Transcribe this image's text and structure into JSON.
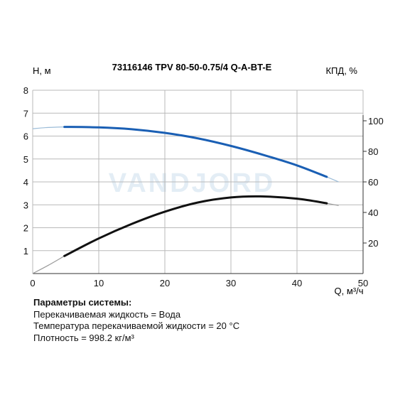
{
  "chart_data": {
    "type": "line",
    "title": "73116146 TPV 80-50-0.75/4 Q-A-BT-E",
    "ylabel_left": "H, м",
    "ylabel_right": "КПД, %",
    "xlabel": "Q, м³/ч",
    "xlim": [
      0,
      50
    ],
    "ylim_left": [
      0,
      8
    ],
    "ylim_right": [
      0,
      120
    ],
    "xticks": [
      "0",
      "10",
      "20",
      "30",
      "40",
      "50"
    ],
    "yticks_left": [
      "1",
      "2",
      "3",
      "4",
      "5",
      "6",
      "7",
      "8"
    ],
    "yticks_right": [
      "20",
      "40",
      "60",
      "80",
      "100"
    ],
    "grid": true,
    "watermark": "VANDJORD",
    "series": [
      {
        "axis": "left",
        "color": "#1a5fb4",
        "ext_color": "#9bbcd8",
        "values": [
          [
            4.8,
            6.4
          ],
          [
            10,
            6.38
          ],
          [
            15,
            6.3
          ],
          [
            20,
            6.14
          ],
          [
            25,
            5.9
          ],
          [
            30,
            5.57
          ],
          [
            35,
            5.17
          ],
          [
            40,
            4.72
          ],
          [
            44.5,
            4.22
          ]
        ],
        "ext_start": [
          [
            0,
            6.32
          ],
          [
            2,
            6.37
          ],
          [
            4.8,
            6.4
          ]
        ],
        "ext_end": [
          [
            44.5,
            4.22
          ],
          [
            46.3,
            4.0
          ]
        ]
      },
      {
        "axis": "right",
        "color": "#111111",
        "ext_color": "#9a9a9a",
        "values": [
          [
            4.8,
            11.5
          ],
          [
            10,
            23
          ],
          [
            15,
            32.5
          ],
          [
            20,
            40.5
          ],
          [
            25,
            46.5
          ],
          [
            30,
            49.8
          ],
          [
            34.5,
            50.5
          ],
          [
            40,
            49
          ],
          [
            44.5,
            46
          ]
        ],
        "ext_start": [
          [
            0,
            0
          ],
          [
            2.4,
            5.5
          ],
          [
            4.8,
            11.5
          ]
        ],
        "ext_end": [
          [
            44.5,
            46
          ],
          [
            46.3,
            44.5
          ]
        ]
      }
    ]
  },
  "params": {
    "heading": "Параметры системы:",
    "lines": [
      "Перекачиваемая жидкость = Вода",
      "Температура перекачиваемой жидкости = 20 °C",
      "Плотность = 998.2 кг/м³"
    ]
  }
}
